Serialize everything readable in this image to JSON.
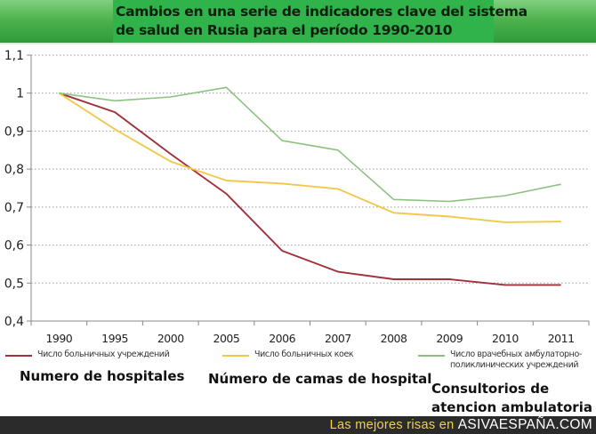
{
  "title": {
    "line1": "Cambios en una serie de indicadores clave del sistema",
    "line2": "de salud en Rusia para el período 1990-2010"
  },
  "legend": [
    {
      "label": "Число больничных учреждений",
      "color": "#a0303a"
    },
    {
      "label": "Число больничных коек",
      "color": "#f2c84a"
    },
    {
      "label": "Число врачебных амбулаторно-поликлинических учреждений",
      "label_line1": "Число врачебных амбулаторно-",
      "label_line2": "поликлинических учреждений",
      "color": "#8cc27f"
    }
  ],
  "captions": {
    "hospitals": "Numero de hospitales",
    "beds": "Número de camas de hospital",
    "ambulatory_line1": "Consultorios de",
    "ambulatory_line2": "atencion ambulatoria"
  },
  "footer": {
    "lead": "Las mejores risas en",
    "site": "ASIVAESPAÑA.COM"
  },
  "chart_data": {
    "type": "line",
    "title": "Cambios en una serie de indicadores clave del sistema de salud en Rusia para el período 1990-2010",
    "xlabel": "",
    "ylabel": "",
    "categories": [
      "1990",
      "1995",
      "2000",
      "2005",
      "2006",
      "2007",
      "2008",
      "2009",
      "2010",
      "2011"
    ],
    "ylim": [
      0.4,
      1.1
    ],
    "yticks": [
      1.1,
      1,
      0.9,
      0.8,
      0.7,
      0.6,
      0.5,
      0.4
    ],
    "ytick_labels": [
      "1,1",
      "1",
      "0,9",
      "0,8",
      "0,7",
      "0,6",
      "0,5",
      "0,4"
    ],
    "grid": "horizontal-dotted",
    "legend_position": "bottom",
    "series": [
      {
        "name": "Число больничных учреждений",
        "color": "#a0303a",
        "values": [
          1.0,
          0.95,
          0.84,
          0.735,
          0.585,
          0.53,
          0.51,
          0.51,
          0.495,
          0.495
        ]
      },
      {
        "name": "Число больничных коек",
        "color": "#f2c84a",
        "values": [
          1.0,
          0.905,
          0.82,
          0.77,
          0.762,
          0.748,
          0.685,
          0.675,
          0.66,
          0.662
        ]
      },
      {
        "name": "Число врачебных амбулаторно-поликлинических учреждений",
        "color": "#8cc27f",
        "values": [
          1.0,
          0.98,
          0.99,
          1.015,
          0.875,
          0.85,
          0.72,
          0.715,
          0.73,
          0.76
        ]
      }
    ]
  }
}
